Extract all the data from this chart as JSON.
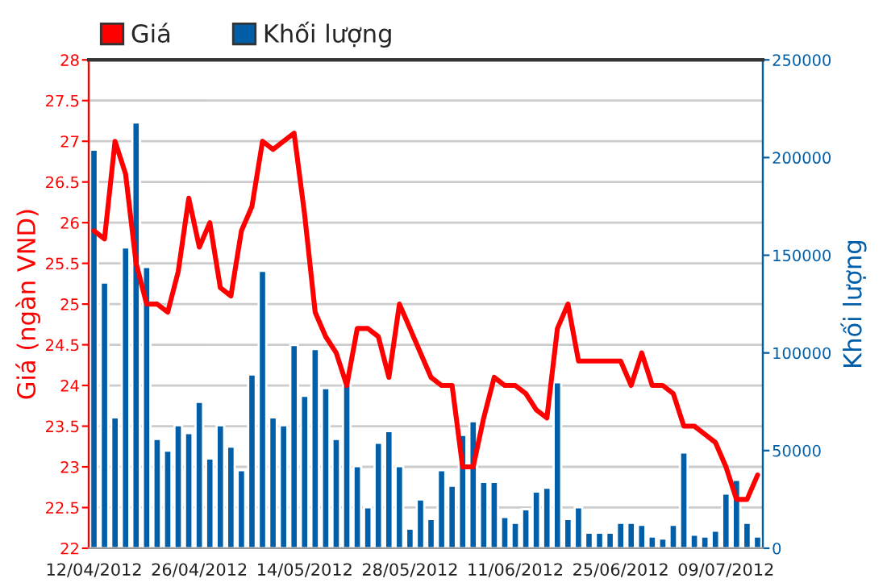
{
  "chart_data": {
    "type": "line",
    "ylabel": "Giá (ngàn VND)",
    "y2label": "Khối lượng",
    "categories": [
      "12/04/2012",
      null,
      null,
      null,
      null,
      null,
      null,
      null,
      null,
      null,
      "26/04/2012",
      null,
      null,
      null,
      null,
      null,
      null,
      null,
      null,
      null,
      "14/05/2012",
      null,
      null,
      null,
      null,
      null,
      null,
      null,
      null,
      null,
      "28/05/2012",
      null,
      null,
      null,
      null,
      null,
      null,
      null,
      null,
      null,
      "11/06/2012",
      null,
      null,
      null,
      null,
      null,
      null,
      null,
      null,
      null,
      "25/06/2012",
      null,
      null,
      null,
      null,
      null,
      null,
      null,
      null,
      null,
      "09/07/2012",
      null,
      null,
      null
    ],
    "series": [
      {
        "name": "Giá",
        "axis": "y",
        "color": "#ff0000",
        "values": [
          25.9,
          25.8,
          27.0,
          26.6,
          25.5,
          25.0,
          25.0,
          24.9,
          25.4,
          26.3,
          25.7,
          26.0,
          25.2,
          25.1,
          25.9,
          26.2,
          27.0,
          26.9,
          27.0,
          27.1,
          26.1,
          24.9,
          24.6,
          24.4,
          24.0,
          24.7,
          24.7,
          24.6,
          24.1,
          25.0,
          24.7,
          24.4,
          24.1,
          24.0,
          24.0,
          23.0,
          23.0,
          23.6,
          24.1,
          24.0,
          24.0,
          23.9,
          23.7,
          23.6,
          24.7,
          25.0,
          24.3,
          24.3,
          24.3,
          24.3,
          24.3,
          24.0,
          24.4,
          24.0,
          24.0,
          23.9,
          23.5,
          23.5,
          23.4,
          23.3,
          23.0,
          22.6,
          22.6,
          22.9
        ]
      },
      {
        "name": "Khối lượng",
        "type": "bar",
        "axis": "y2",
        "color": "#005fa8",
        "values": [
          204000,
          136000,
          67000,
          154000,
          218000,
          144000,
          56000,
          50000,
          63000,
          59000,
          75000,
          46000,
          63000,
          52000,
          40000,
          89000,
          142000,
          67000,
          63000,
          104000,
          78000,
          102000,
          82000,
          56000,
          84000,
          42000,
          21000,
          54000,
          60000,
          42000,
          10000,
          25000,
          15000,
          40000,
          32000,
          58000,
          65000,
          34000,
          34000,
          16000,
          13000,
          20000,
          29000,
          31000,
          85000,
          15000,
          21000,
          8000,
          8000,
          8000,
          13000,
          13000,
          12000,
          6000,
          5000,
          12000,
          49000,
          7000,
          6000,
          9000,
          28000,
          35000,
          13000,
          6000
        ]
      }
    ],
    "ylim": [
      22,
      28
    ],
    "yticks": [
      22,
      22.5,
      23,
      23.5,
      24,
      24.5,
      25,
      25.5,
      26,
      26.5,
      27,
      27.5,
      28
    ],
    "y2lim": [
      0,
      250000
    ],
    "y2ticks": [
      0,
      50000,
      100000,
      150000,
      200000,
      250000
    ],
    "grid": "y",
    "legend": "top left"
  }
}
